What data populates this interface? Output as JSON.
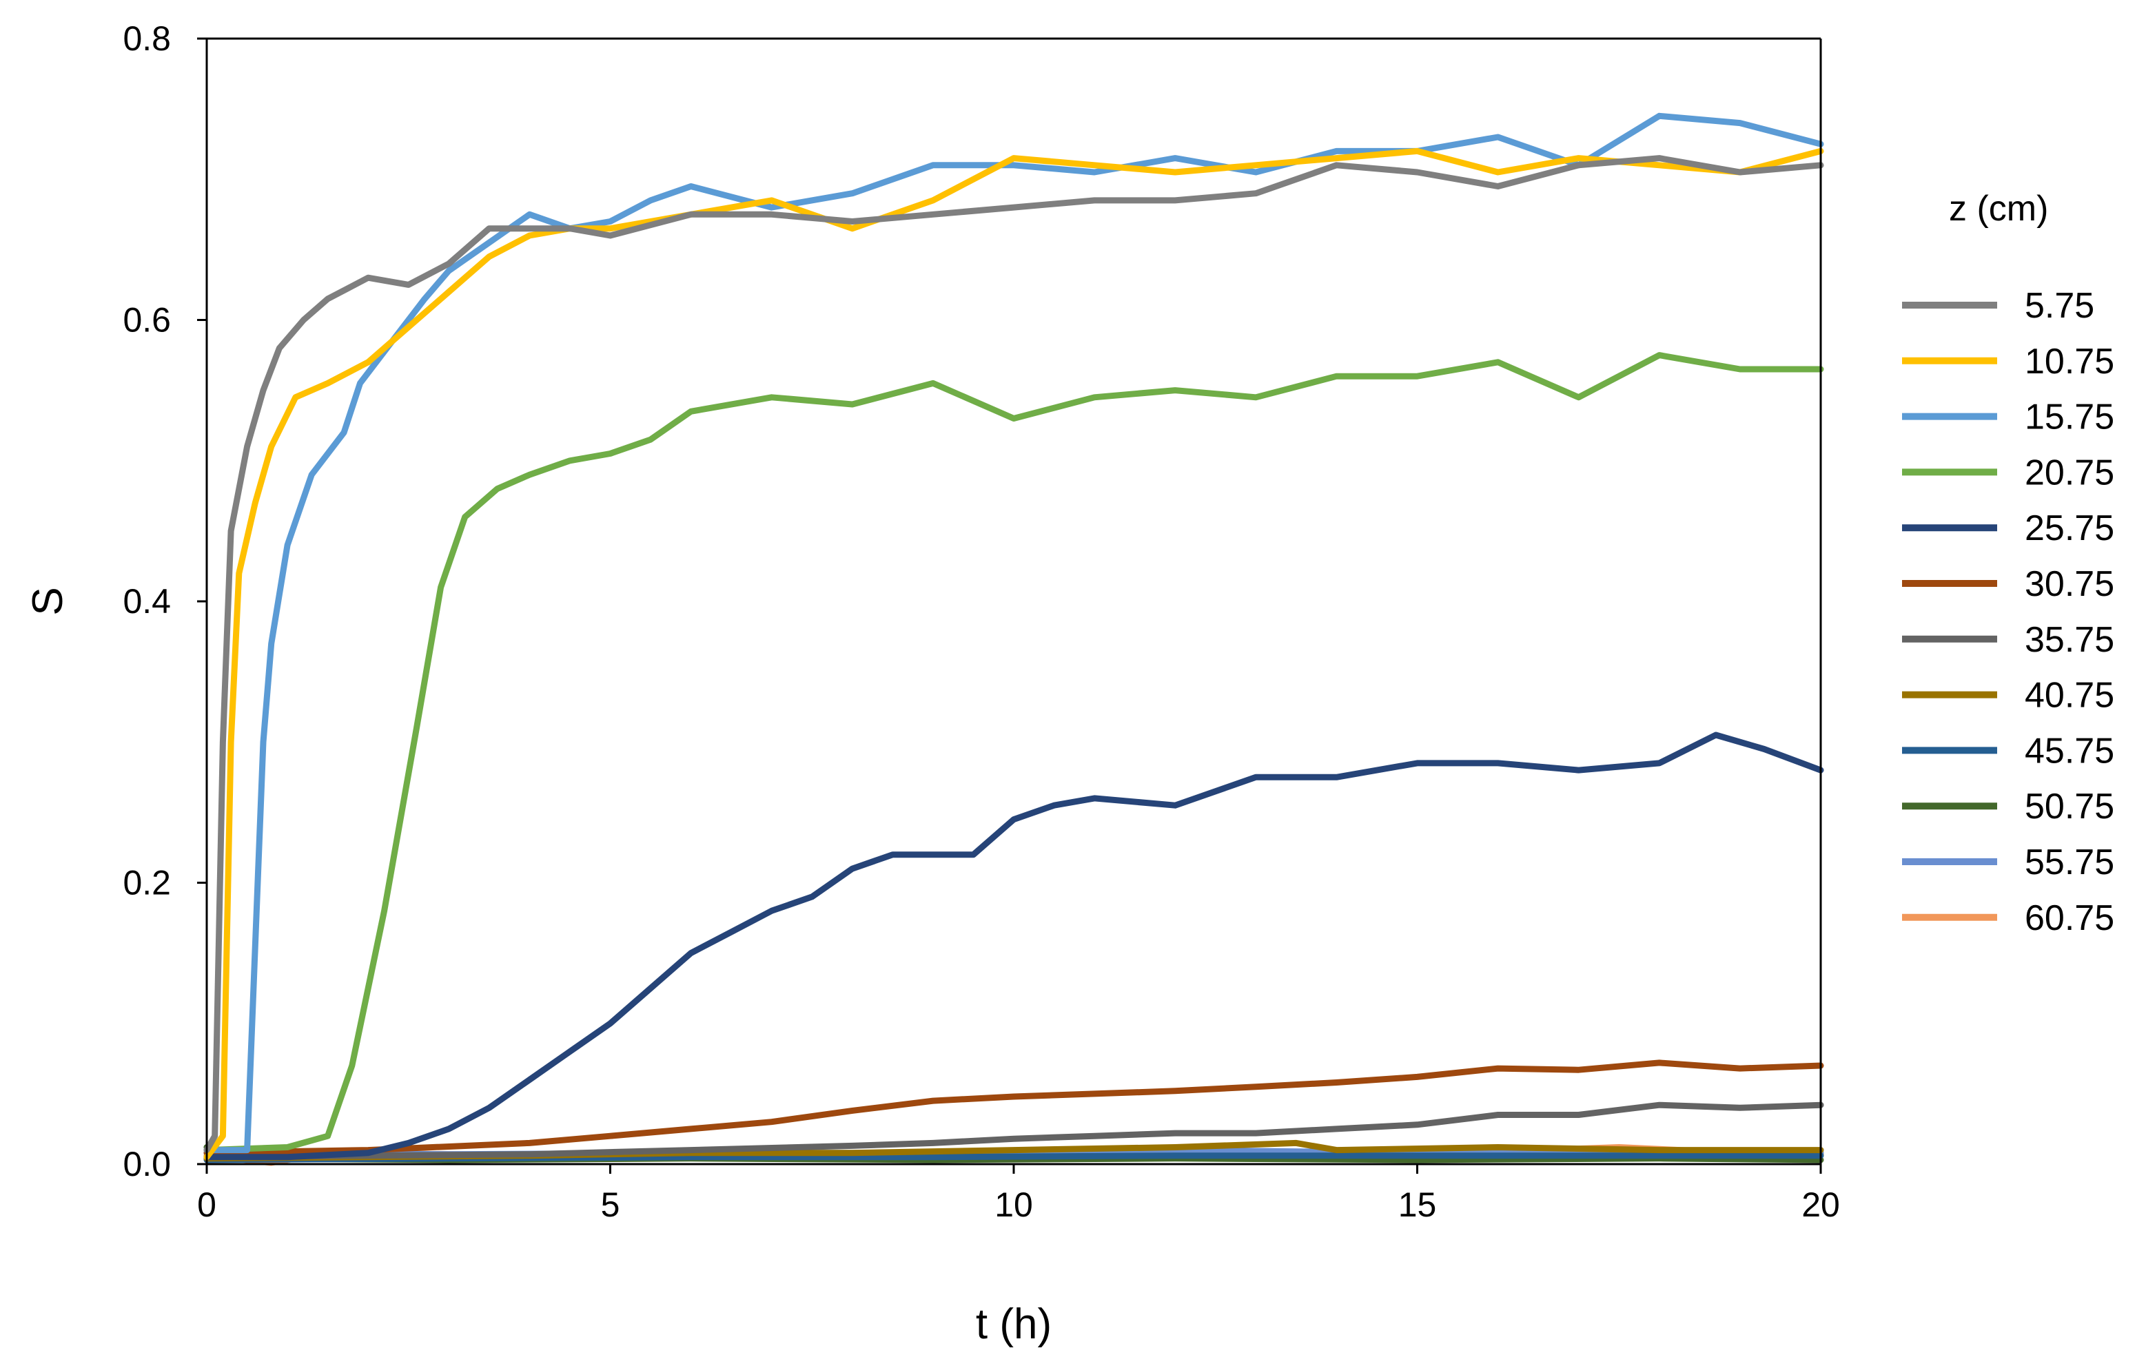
{
  "chart_data": {
    "type": "line",
    "title": "",
    "xlabel": "t (h)",
    "ylabel": "S",
    "xlim": [
      0,
      20
    ],
    "ylim": [
      0,
      0.8
    ],
    "x_ticks": [
      "0",
      "5",
      "10",
      "15",
      "20"
    ],
    "y_ticks": [
      "0.0",
      "0.2",
      "0.4",
      "0.6",
      "0.8"
    ],
    "grid": false,
    "legend": {
      "title": "z (cm)",
      "position": "right"
    },
    "series": [
      {
        "name": "5.75",
        "color": "#7f7f7f",
        "points": [
          [
            0,
            0.01
          ],
          [
            0.1,
            0.02
          ],
          [
            0.2,
            0.3
          ],
          [
            0.3,
            0.45
          ],
          [
            0.5,
            0.51
          ],
          [
            0.7,
            0.55
          ],
          [
            0.9,
            0.58
          ],
          [
            1.2,
            0.6
          ],
          [
            1.5,
            0.615
          ],
          [
            2,
            0.63
          ],
          [
            2.5,
            0.625
          ],
          [
            3,
            0.64
          ],
          [
            3.5,
            0.665
          ],
          [
            4,
            0.665
          ],
          [
            4.5,
            0.665
          ],
          [
            5,
            0.66
          ],
          [
            6,
            0.675
          ],
          [
            7,
            0.675
          ],
          [
            8,
            0.67
          ],
          [
            9,
            0.675
          ],
          [
            10,
            0.68
          ],
          [
            11,
            0.685
          ],
          [
            12,
            0.685
          ],
          [
            13,
            0.69
          ],
          [
            14,
            0.71
          ],
          [
            15,
            0.705
          ],
          [
            16,
            0.695
          ],
          [
            17,
            0.71
          ],
          [
            18,
            0.715
          ],
          [
            19,
            0.705
          ],
          [
            20,
            0.71
          ]
        ]
      },
      {
        "name": "10.75",
        "color": "#ffc000",
        "points": [
          [
            0,
            0.005
          ],
          [
            0.2,
            0.02
          ],
          [
            0.3,
            0.3
          ],
          [
            0.4,
            0.42
          ],
          [
            0.6,
            0.47
          ],
          [
            0.8,
            0.51
          ],
          [
            1.1,
            0.545
          ],
          [
            1.5,
            0.555
          ],
          [
            2,
            0.57
          ],
          [
            2.5,
            0.595
          ],
          [
            3,
            0.62
          ],
          [
            3.5,
            0.645
          ],
          [
            4,
            0.66
          ],
          [
            4.5,
            0.665
          ],
          [
            5,
            0.665
          ],
          [
            6,
            0.675
          ],
          [
            7,
            0.685
          ],
          [
            8,
            0.665
          ],
          [
            9,
            0.685
          ],
          [
            10,
            0.715
          ],
          [
            11,
            0.71
          ],
          [
            12,
            0.705
          ],
          [
            13,
            0.71
          ],
          [
            14,
            0.715
          ],
          [
            15,
            0.72
          ],
          [
            16,
            0.705
          ],
          [
            17,
            0.715
          ],
          [
            18,
            0.71
          ],
          [
            19,
            0.705
          ],
          [
            20,
            0.72
          ]
        ]
      },
      {
        "name": "15.75",
        "color": "#5b9bd5",
        "points": [
          [
            0,
            0.01
          ],
          [
            0.5,
            0.01
          ],
          [
            0.7,
            0.3
          ],
          [
            0.8,
            0.37
          ],
          [
            1,
            0.44
          ],
          [
            1.3,
            0.49
          ],
          [
            1.7,
            0.52
          ],
          [
            1.9,
            0.555
          ],
          [
            2.3,
            0.585
          ],
          [
            2.7,
            0.615
          ],
          [
            3,
            0.635
          ],
          [
            3.5,
            0.655
          ],
          [
            4,
            0.675
          ],
          [
            4.5,
            0.665
          ],
          [
            5,
            0.67
          ],
          [
            5.5,
            0.685
          ],
          [
            6,
            0.695
          ],
          [
            7,
            0.68
          ],
          [
            8,
            0.69
          ],
          [
            9,
            0.71
          ],
          [
            10,
            0.71
          ],
          [
            11,
            0.705
          ],
          [
            12,
            0.715
          ],
          [
            13,
            0.705
          ],
          [
            14,
            0.72
          ],
          [
            15,
            0.72
          ],
          [
            16,
            0.73
          ],
          [
            17,
            0.71
          ],
          [
            18,
            0.745
          ],
          [
            19,
            0.74
          ],
          [
            20,
            0.725
          ]
        ]
      },
      {
        "name": "20.75",
        "color": "#70ad47",
        "points": [
          [
            0,
            0.01
          ],
          [
            1,
            0.012
          ],
          [
            1.5,
            0.02
          ],
          [
            1.8,
            0.07
          ],
          [
            2.2,
            0.18
          ],
          [
            2.6,
            0.31
          ],
          [
            2.9,
            0.41
          ],
          [
            3.2,
            0.46
          ],
          [
            3.6,
            0.48
          ],
          [
            4,
            0.49
          ],
          [
            4.5,
            0.5
          ],
          [
            5,
            0.505
          ],
          [
            5.5,
            0.515
          ],
          [
            6,
            0.535
          ],
          [
            7,
            0.545
          ],
          [
            8,
            0.54
          ],
          [
            9,
            0.555
          ],
          [
            10,
            0.53
          ],
          [
            11,
            0.545
          ],
          [
            12,
            0.55
          ],
          [
            13,
            0.545
          ],
          [
            14,
            0.56
          ],
          [
            15,
            0.56
          ],
          [
            16,
            0.57
          ],
          [
            17,
            0.545
          ],
          [
            18,
            0.575
          ],
          [
            19,
            0.565
          ],
          [
            20,
            0.565
          ]
        ]
      },
      {
        "name": "25.75",
        "color": "#264478",
        "points": [
          [
            0,
            0.005
          ],
          [
            1,
            0.005
          ],
          [
            2,
            0.008
          ],
          [
            2.5,
            0.015
          ],
          [
            3,
            0.025
          ],
          [
            3.5,
            0.04
          ],
          [
            4,
            0.06
          ],
          [
            4.5,
            0.08
          ],
          [
            5,
            0.1
          ],
          [
            5.5,
            0.125
          ],
          [
            6,
            0.15
          ],
          [
            6.5,
            0.165
          ],
          [
            7,
            0.18
          ],
          [
            7.5,
            0.19
          ],
          [
            8,
            0.21
          ],
          [
            8.5,
            0.22
          ],
          [
            9,
            0.22
          ],
          [
            9.5,
            0.22
          ],
          [
            10,
            0.245
          ],
          [
            10.5,
            0.255
          ],
          [
            11,
            0.26
          ],
          [
            12,
            0.255
          ],
          [
            13,
            0.275
          ],
          [
            14,
            0.275
          ],
          [
            15,
            0.285
          ],
          [
            16,
            0.285
          ],
          [
            17,
            0.28
          ],
          [
            18,
            0.285
          ],
          [
            18.7,
            0.305
          ],
          [
            19.3,
            0.295
          ],
          [
            20,
            0.28
          ]
        ]
      },
      {
        "name": "30.75",
        "color": "#9e480e",
        "points": [
          [
            0,
            0.008
          ],
          [
            2,
            0.01
          ],
          [
            4,
            0.015
          ],
          [
            5,
            0.02
          ],
          [
            6,
            0.025
          ],
          [
            7,
            0.03
          ],
          [
            8,
            0.038
          ],
          [
            9,
            0.045
          ],
          [
            10,
            0.048
          ],
          [
            11,
            0.05
          ],
          [
            12,
            0.052
          ],
          [
            13,
            0.055
          ],
          [
            14,
            0.058
          ],
          [
            15,
            0.062
          ],
          [
            16,
            0.068
          ],
          [
            17,
            0.067
          ],
          [
            18,
            0.072
          ],
          [
            19,
            0.068
          ],
          [
            20,
            0.07
          ]
        ]
      },
      {
        "name": "35.75",
        "color": "#636363",
        "points": [
          [
            0,
            0.005
          ],
          [
            2,
            0.006
          ],
          [
            4,
            0.007
          ],
          [
            6,
            0.01
          ],
          [
            8,
            0.013
          ],
          [
            9,
            0.015
          ],
          [
            10,
            0.018
          ],
          [
            11,
            0.02
          ],
          [
            12,
            0.022
          ],
          [
            13,
            0.022
          ],
          [
            14,
            0.025
          ],
          [
            15,
            0.028
          ],
          [
            16,
            0.035
          ],
          [
            17,
            0.035
          ],
          [
            18,
            0.042
          ],
          [
            19,
            0.04
          ],
          [
            20,
            0.042
          ]
        ]
      },
      {
        "name": "40.75",
        "color": "#997300",
        "points": [
          [
            0,
            0.004
          ],
          [
            2,
            0.005
          ],
          [
            4,
            0.006
          ],
          [
            6,
            0.008
          ],
          [
            8,
            0.008
          ],
          [
            10,
            0.01
          ],
          [
            12,
            0.012
          ],
          [
            13.5,
            0.015
          ],
          [
            14,
            0.01
          ],
          [
            16,
            0.012
          ],
          [
            18,
            0.01
          ],
          [
            20,
            0.01
          ]
        ]
      },
      {
        "name": "45.75",
        "color": "#255e91",
        "points": [
          [
            0,
            0.003
          ],
          [
            3,
            0.004
          ],
          [
            6,
            0.005
          ],
          [
            9,
            0.005
          ],
          [
            12,
            0.006
          ],
          [
            15,
            0.006
          ],
          [
            18,
            0.006
          ],
          [
            20,
            0.006
          ]
        ]
      },
      {
        "name": "50.75",
        "color": "#43682b",
        "points": [
          [
            0,
            0.012
          ],
          [
            0.3,
            0.004
          ],
          [
            3,
            0.003
          ],
          [
            6,
            0.004
          ],
          [
            9,
            0.003
          ],
          [
            12,
            0.004
          ],
          [
            15,
            0.003
          ],
          [
            18,
            0.004
          ],
          [
            20,
            0.003
          ]
        ]
      },
      {
        "name": "55.75",
        "color": "#698ed0",
        "points": [
          [
            0,
            0.008
          ],
          [
            3,
            0.007
          ],
          [
            6,
            0.008
          ],
          [
            9,
            0.008
          ],
          [
            12,
            0.01
          ],
          [
            15,
            0.008
          ],
          [
            17,
            0.01
          ],
          [
            18,
            0.009
          ],
          [
            20,
            0.008
          ]
        ]
      },
      {
        "name": "60.75",
        "color": "#f1975a",
        "points": [
          [
            0,
            0.006
          ],
          [
            0.8,
            0.001
          ],
          [
            1.5,
            0.008
          ],
          [
            3,
            0.007
          ],
          [
            6,
            0.006
          ],
          [
            9,
            0.007
          ],
          [
            12,
            0.008
          ],
          [
            15,
            0.007
          ],
          [
            17.5,
            0.012
          ],
          [
            19,
            0.008
          ],
          [
            20,
            0.007
          ]
        ]
      }
    ]
  }
}
